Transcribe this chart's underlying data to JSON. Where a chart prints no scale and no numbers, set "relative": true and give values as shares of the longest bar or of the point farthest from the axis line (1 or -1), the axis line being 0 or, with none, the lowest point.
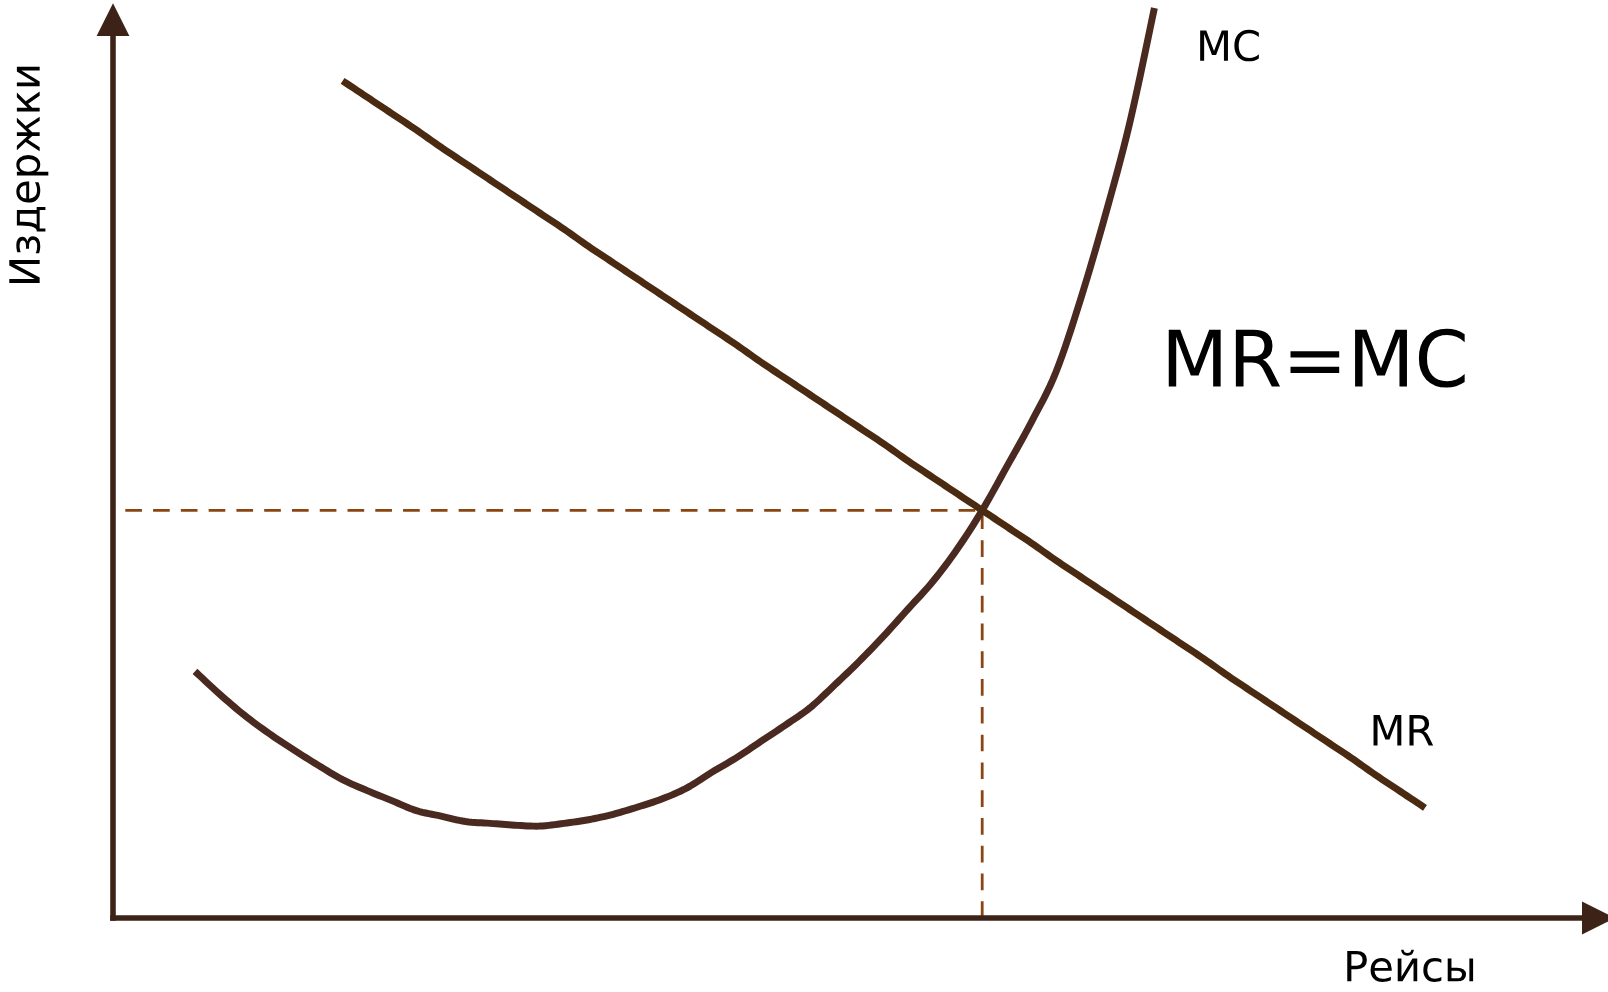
{
  "chart_data": {
    "type": "line",
    "relative": true,
    "xlabel": "Рейсы",
    "ylabel": "Издержки",
    "tick_labels": false,
    "grid": false,
    "legend": false,
    "marker": "none",
    "line_style": "solid",
    "categories": [
      null,
      null,
      null,
      null,
      null,
      null,
      null,
      null,
      null,
      null,
      null,
      null,
      null,
      null,
      null,
      null,
      null,
      null,
      null,
      null,
      null,
      null,
      null,
      null,
      null,
      null,
      null,
      null,
      null,
      null,
      null,
      null,
      null,
      null,
      null,
      null,
      null,
      null,
      null,
      null,
      null,
      null,
      null,
      null,
      null,
      null,
      null,
      null,
      null,
      null,
      null
    ],
    "series": [
      {
        "name": "MC",
        "color": "#4a2a20",
        "values": [
          0.271,
          0.246,
          0.223,
          0.203,
          0.185,
          0.168,
          0.152,
          0.14,
          0.129,
          0.118,
          0.112,
          0.106,
          0.104,
          0.102,
          0.101,
          0.104,
          0.108,
          0.114,
          0.122,
          0.131,
          0.143,
          0.16,
          0.176,
          0.194,
          0.212,
          0.231,
          0.256,
          0.282,
          0.31,
          0.34,
          0.37,
          0.406,
          0.448,
          0.496,
          0.545,
          0.6,
          0.68,
          0.772,
          0.874,
          1,
          null,
          null,
          null,
          null,
          null,
          null,
          null,
          null,
          null,
          null,
          null
        ]
      },
      {
        "name": "MR",
        "color": "#4a2a10",
        "values": [
          null,
          null,
          null,
          null,
          null,
          null,
          0.92,
          0.902,
          0.884,
          0.866,
          0.847,
          0.829,
          0.811,
          0.793,
          0.775,
          0.757,
          0.738,
          0.72,
          0.702,
          0.684,
          0.666,
          0.648,
          0.63,
          0.611,
          0.593,
          0.575,
          0.557,
          0.539,
          0.521,
          0.502,
          0.484,
          0.466,
          0.448,
          0.43,
          0.412,
          0.393,
          0.375,
          0.357,
          0.339,
          0.321,
          0.303,
          0.285,
          0.266,
          0.248,
          0.23,
          0.212,
          0.194,
          0.176,
          0.157,
          0.139,
          0.121
        ]
      }
    ],
    "ref_lines": [
      {
        "axis": "y",
        "value": 0.448,
        "color": "#8b4513",
        "line_style": "dashed"
      }
    ],
    "annotations": [
      "MR=MC"
    ]
  }
}
